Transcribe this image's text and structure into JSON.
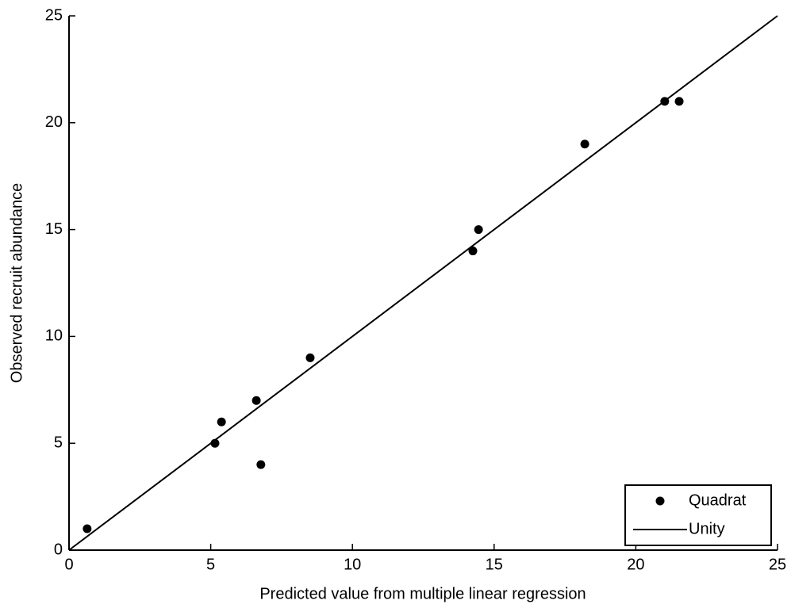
{
  "chart_data": {
    "type": "scatter",
    "xlabel": "Predicted value from multiple linear regression",
    "ylabel": "Observed recruit abundance",
    "xlim": [
      0,
      25
    ],
    "ylim": [
      0,
      25
    ],
    "xticks": [
      0,
      5,
      10,
      15,
      20,
      25
    ],
    "yticks": [
      0,
      5,
      10,
      15,
      20,
      25
    ],
    "grid": false,
    "legend": "lower right",
    "series": [
      {
        "name": "Quadrat",
        "color": "#000000",
        "style": "markers",
        "x": [
          0.64,
          5.15,
          5.38,
          6.61,
          6.77,
          8.51,
          14.25,
          14.45,
          18.2,
          21.02,
          21.53
        ],
        "values": [
          1,
          5,
          6,
          7,
          4,
          9,
          14,
          15,
          19,
          21,
          21
        ]
      },
      {
        "name": "Unity",
        "color": "#000000",
        "style": "line",
        "x": [
          0,
          25
        ],
        "values": [
          0,
          25
        ]
      }
    ]
  }
}
